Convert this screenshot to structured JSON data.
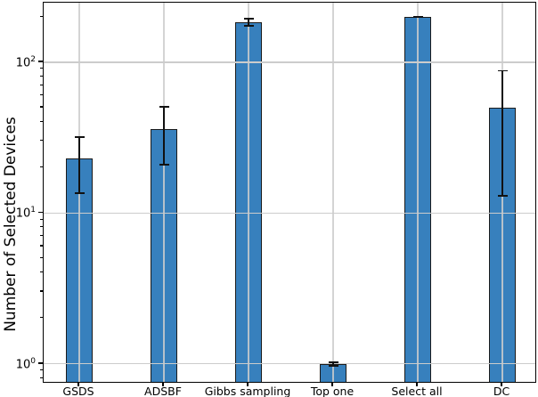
{
  "chart_data": {
    "type": "bar",
    "title": "",
    "xlabel": "",
    "ylabel": "Number of Selected Devices",
    "yscale": "log",
    "ylim": [
      0.76,
      249
    ],
    "grid": true,
    "legend": "none",
    "categories": [
      "GSDS",
      "ADSBF",
      "Gibbs sampling",
      "Top one",
      "Select all",
      "DC"
    ],
    "values": [
      23,
      36,
      185,
      1,
      200,
      50
    ],
    "error_low": [
      13.5,
      21,
      175,
      0.97,
      200,
      13
    ],
    "error_high": [
      32,
      51,
      195,
      1.03,
      200,
      88
    ],
    "yticks": [
      {
        "value": 1,
        "base": "10",
        "exponent": "0"
      },
      {
        "value": 10,
        "base": "10",
        "exponent": "1"
      },
      {
        "value": 100,
        "base": "10",
        "exponent": "2"
      }
    ],
    "colors": {
      "bar_fill": "#3780bd",
      "bar_edge": "#1b1b1b",
      "grid": "#cccccc",
      "error": "#111111",
      "spine": "#000000",
      "background": "#ffffff"
    }
  }
}
